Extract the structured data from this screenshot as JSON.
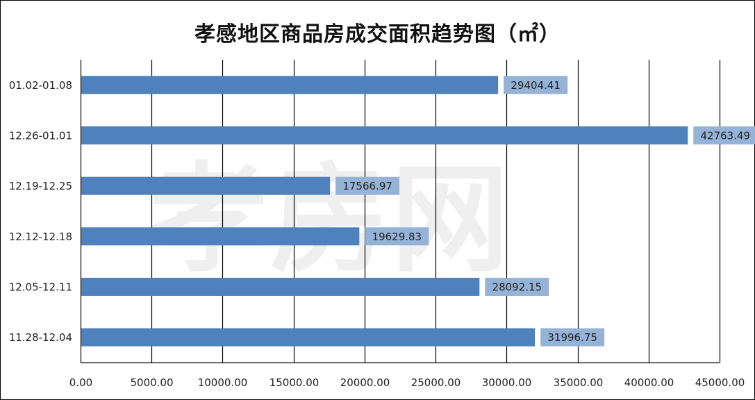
{
  "chart_data": {
    "type": "bar",
    "orientation": "horizontal",
    "title": "孝感地区商品房成交面积趋势图（㎡）",
    "xlabel": "",
    "ylabel": "",
    "categories": [
      "11.28-12.04",
      "12.05-12.11",
      "12.12-12.18",
      "12.19-12.25",
      "12.26-01.01",
      "01.02-01.08"
    ],
    "values": [
      31996.75,
      28092.15,
      19629.83,
      17566.97,
      42763.49,
      29404.41
    ],
    "data_labels": [
      "31996.75",
      "28092.15",
      "19629.83",
      "17566.97",
      "42763.49",
      "29404.41"
    ],
    "xlim": [
      0,
      45000
    ],
    "xticks": [
      "0.00",
      "5000.00",
      "10000.00",
      "15000.00",
      "20000.00",
      "25000.00",
      "30000.00",
      "35000.00",
      "40000.00",
      "45000.00"
    ],
    "grid": "vertical",
    "legend": "none",
    "colors": {
      "bar": "#4f81bd",
      "label_bg": "#95b3d7",
      "grid": "#000000"
    }
  },
  "watermark": "孝房网"
}
